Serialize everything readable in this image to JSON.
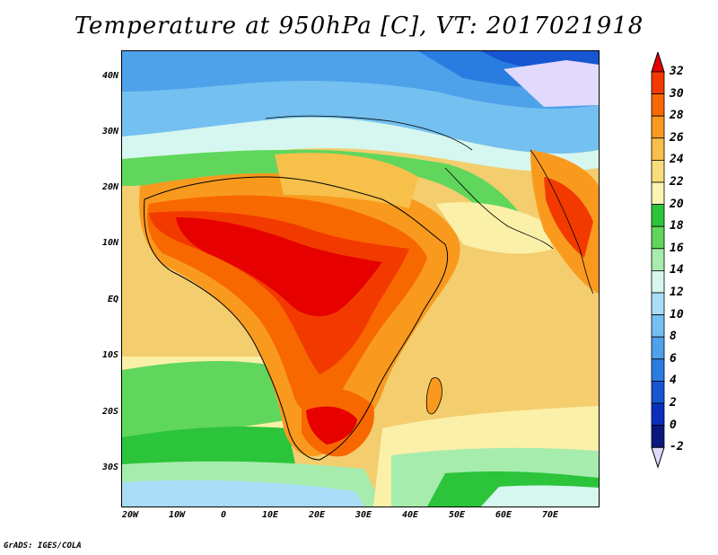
{
  "title": "Temperature at 950hPa [C], VT: 2017021918",
  "credit": "GrADS: IGES/COLA",
  "map": {
    "lat_labels": [
      "40N",
      "30N",
      "20N",
      "10N",
      "EQ",
      "10S",
      "20S",
      "30S"
    ],
    "lon_labels": [
      "20W",
      "10W",
      "0",
      "10E",
      "20E",
      "30E",
      "40E",
      "50E",
      "60E",
      "70E"
    ]
  },
  "colorbar": {
    "unit": "C",
    "labels": [
      "32",
      "30",
      "28",
      "26",
      "24",
      "22",
      "20",
      "18",
      "16",
      "14",
      "12",
      "10",
      "8",
      "6",
      "4",
      "2",
      "0",
      "-2"
    ],
    "colors": [
      "#e60000",
      "#f23a00",
      "#f86800",
      "#f99a1e",
      "#f7c04a",
      "#f9dd7a",
      "#fbf3b0",
      "#2cc43a",
      "#60d65c",
      "#a6ecad",
      "#d6f7ef",
      "#a9dcf7",
      "#74c0f0",
      "#4ea2ea",
      "#2a7de0",
      "#1756d1",
      "#0a2fbf",
      "#0a177f",
      "#e1dafc"
    ]
  }
}
